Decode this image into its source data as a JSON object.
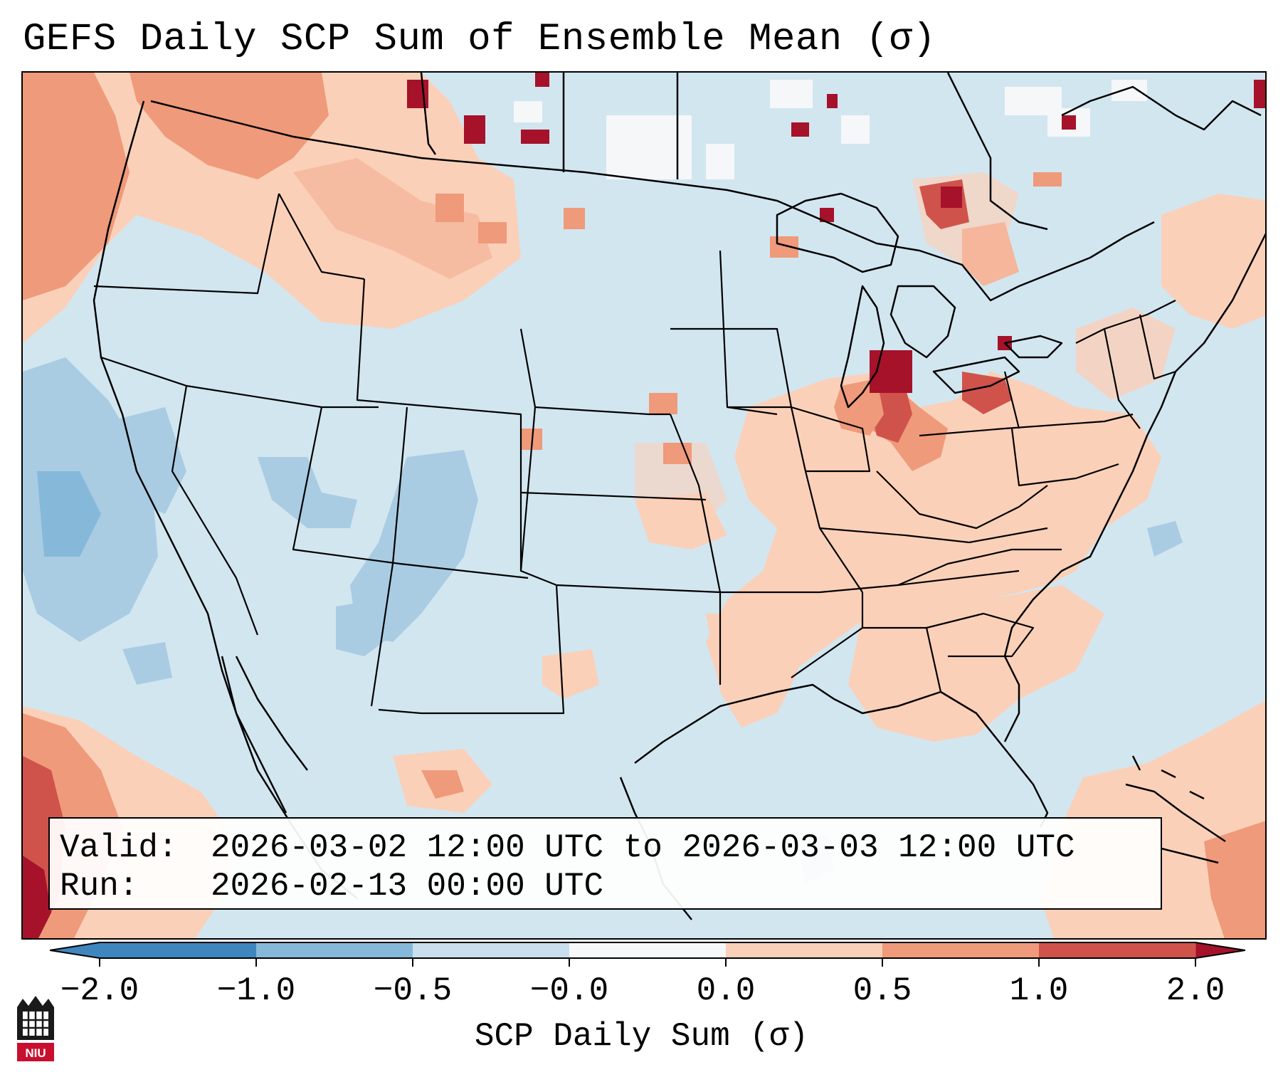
{
  "title": "GEFS Daily SCP Sum of Ensemble Mean (σ)",
  "info_box": {
    "valid_key": "Valid:",
    "valid_value": "2026-03-02 12:00 UTC to 2026-03-03 12:00 UTC",
    "run_key": "Run:",
    "run_value": "2026-02-13 00:00 UTC"
  },
  "colorbar": {
    "label": "SCP Daily Sum (σ)",
    "ticks": [
      "−2.0",
      "−1.0",
      "−0.5",
      "−0.0",
      "0.0",
      "0.5",
      "1.0",
      "2.0"
    ],
    "colors": [
      "#3f86bf",
      "#86b9d9",
      "#c9dfee",
      "#f5f7f9",
      "#fbd0b9",
      "#ef9a7a",
      "#d0534b",
      "#a5122a"
    ]
  },
  "logo": {
    "text": "NIU"
  }
}
